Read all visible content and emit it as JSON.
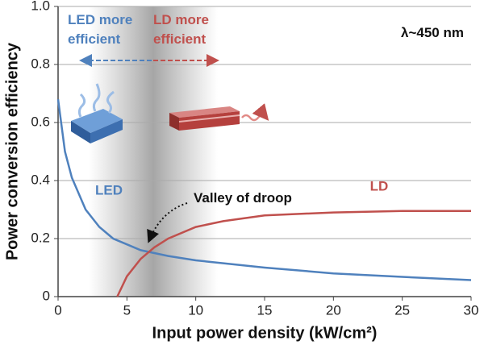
{
  "chart_data": {
    "type": "line",
    "x_label": "Input power density (kW/cm²)",
    "y_label": "Power conversion efficiency",
    "xlim": [
      0,
      30
    ],
    "ylim": [
      0,
      1
    ],
    "xticks": [
      0,
      5,
      10,
      15,
      20,
      25,
      30
    ],
    "yticks": [
      0,
      0.2,
      0.4,
      0.6,
      0.8,
      {
        "value": 1,
        "label": "1.0"
      }
    ],
    "grid": true,
    "series": [
      {
        "name": "LED",
        "color": "#4f81bd",
        "x": [
          0,
          0.5,
          1,
          2,
          3,
          4,
          5,
          6,
          8,
          10,
          12,
          15,
          20,
          25,
          30
        ],
        "values": [
          0.68,
          0.5,
          0.41,
          0.3,
          0.24,
          0.2,
          0.18,
          0.16,
          0.14,
          0.125,
          0.115,
          0.1,
          0.08,
          0.068,
          0.057
        ]
      },
      {
        "name": "LD",
        "color": "#c0504d",
        "x": [
          4.3,
          5,
          6,
          7,
          8,
          10,
          12,
          15,
          20,
          25,
          30
        ],
        "values": [
          0,
          0.07,
          0.13,
          0.17,
          0.2,
          0.24,
          0.26,
          0.28,
          0.29,
          0.295,
          0.295
        ]
      }
    ],
    "annotations": [
      {
        "lines": [
          "LED more",
          "efficient"
        ],
        "color": "#4f81bd"
      },
      {
        "lines": [
          "LD more",
          "efficient"
        ],
        "color": "#c0504d"
      },
      {
        "lines": [
          "λ~450 nm"
        ],
        "color": "#111111"
      },
      {
        "lines": [
          "Valley of droop"
        ],
        "color": "#111111"
      }
    ]
  }
}
